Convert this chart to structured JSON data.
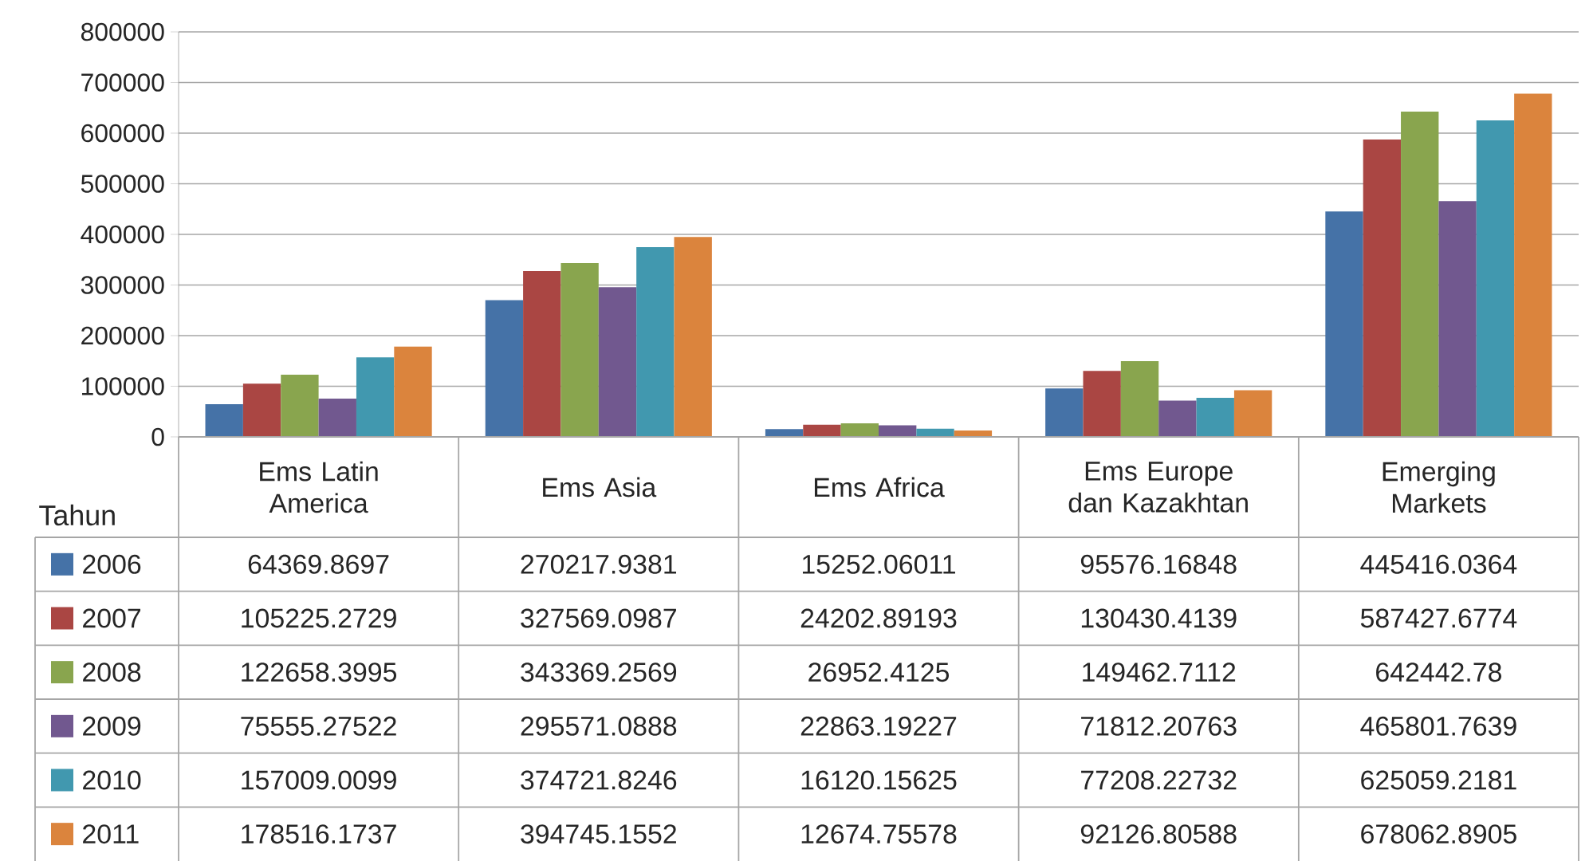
{
  "chart_data": {
    "type": "bar",
    "legend_title": "Tahun",
    "categories": [
      "Ems Latin America",
      "Ems Asia",
      "Ems Africa",
      "Ems Europe dan Kazakhtan",
      "Emerging Markets"
    ],
    "series": [
      {
        "name": "2006",
        "color": "#4572a7",
        "values": [
          64369.8697,
          270217.9381,
          15252.06011,
          95576.16848,
          445416.0364
        ],
        "value_labels": [
          "64369.8697",
          "270217.9381",
          "15252.06011",
          "95576.16848",
          "445416.0364"
        ]
      },
      {
        "name": "2007",
        "color": "#aa4643",
        "values": [
          105225.2729,
          327569.0987,
          24202.89193,
          130430.4139,
          587427.6774
        ],
        "value_labels": [
          "105225.2729",
          "327569.0987",
          "24202.89193",
          "130430.4139",
          "587427.6774"
        ]
      },
      {
        "name": "2008",
        "color": "#89a54e",
        "values": [
          122658.3995,
          343369.2569,
          26952.4125,
          149462.7112,
          642442.78
        ],
        "value_labels": [
          "122658.3995",
          "343369.2569",
          "26952.4125",
          "149462.7112",
          "642442.78"
        ]
      },
      {
        "name": "2009",
        "color": "#71588f",
        "values": [
          75555.27522,
          295571.0888,
          22863.19227,
          71812.20763,
          465801.7639
        ],
        "value_labels": [
          "75555.27522",
          "295571.0888",
          "22863.19227",
          "71812.20763",
          "465801.7639"
        ]
      },
      {
        "name": "2010",
        "color": "#4198af",
        "values": [
          157009.0099,
          374721.8246,
          16120.15625,
          77208.22732,
          625059.2181
        ],
        "value_labels": [
          "157009.0099",
          "374721.8246",
          "16120.15625",
          "77208.22732",
          "625059.2181"
        ]
      },
      {
        "name": "2011",
        "color": "#db843d",
        "values": [
          178516.1737,
          394745.1552,
          12674.75578,
          92126.80588,
          678062.8905
        ],
        "value_labels": [
          "178516.1737",
          "394745.1552",
          "12674.75578",
          "92126.80588",
          "678062.8905"
        ]
      }
    ],
    "ylim": [
      0,
      800000
    ],
    "yticks": [
      0,
      100000,
      200000,
      300000,
      400000,
      500000,
      600000,
      700000,
      800000
    ],
    "grid": "y",
    "legend": "bottom left"
  }
}
